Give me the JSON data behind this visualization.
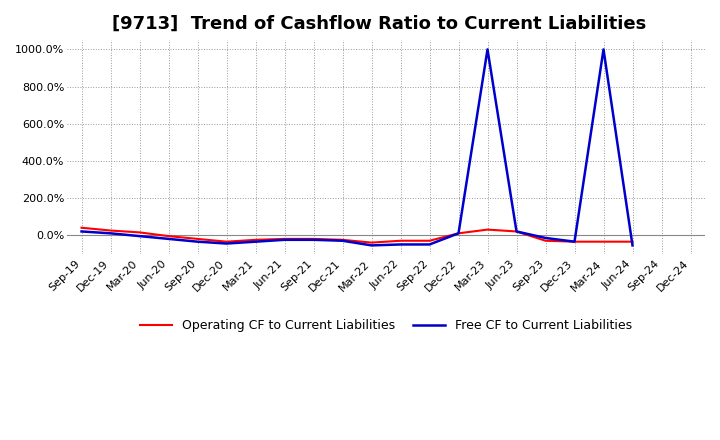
{
  "title": "[9713]  Trend of Cashflow Ratio to Current Liabilities",
  "x_labels": [
    "Sep-19",
    "Dec-19",
    "Mar-20",
    "Jun-20",
    "Sep-20",
    "Dec-20",
    "Mar-21",
    "Jun-21",
    "Sep-21",
    "Dec-21",
    "Mar-22",
    "Jun-22",
    "Sep-22",
    "Dec-22",
    "Mar-23",
    "Jun-23",
    "Sep-23",
    "Dec-23",
    "Mar-24",
    "Jun-24",
    "Sep-24",
    "Dec-24"
  ],
  "operating_cf": [
    40,
    25,
    15,
    -5,
    -20,
    -35,
    -25,
    -20,
    -20,
    -25,
    -40,
    -30,
    -30,
    10,
    30,
    20,
    -30,
    -35,
    -35,
    -35,
    null,
    null
  ],
  "free_cf": [
    20,
    10,
    -5,
    -20,
    -35,
    -45,
    -35,
    -25,
    -25,
    -30,
    -55,
    -50,
    -50,
    10,
    1000,
    20,
    -15,
    -35,
    1000,
    -55,
    null,
    null
  ],
  "operating_color": "#ff0000",
  "free_color": "#0000cc",
  "ylim_min": -100,
  "ylim_max": 1050,
  "ytick_values": [
    0,
    200,
    400,
    600,
    800,
    1000
  ],
  "ytick_top": 1000,
  "background_color": "#ffffff",
  "plot_bg_color": "#ffffff",
  "grid_color": "#999999",
  "title_fontsize": 13,
  "axis_fontsize": 8,
  "legend_fontsize": 9
}
